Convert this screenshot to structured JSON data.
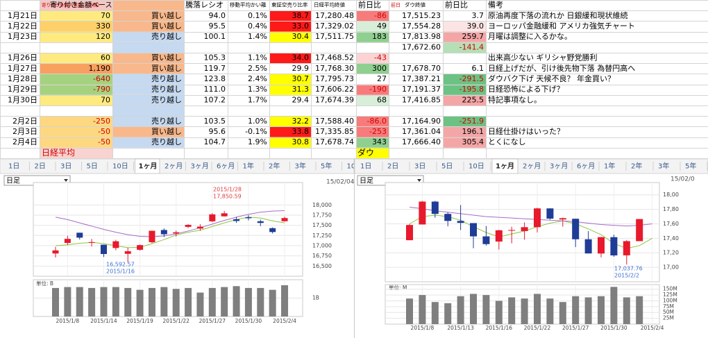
{
  "table": {
    "headers": [
      null,
      "寄り付き外国人売買い(万株)",
      "寄り付き金額ベース",
      "騰落レシオ",
      "移動平均かい離",
      "東証空売り比率",
      "日経平均終値",
      "前日比",
      "前日",
      "ダウ終値",
      "前日比",
      "備考"
    ],
    "rows": [
      [
        "1月21日",
        "70",
        "買い越し",
        "94.0",
        "0.1%",
        "38.7",
        "17,280.48",
        "-86",
        "17,515.23",
        "3.7",
        "原油再度下落の流れか 日銀緩和現状維続"
      ],
      [
        "1月22日",
        "330",
        "買い越し",
        "95.5",
        "0.4%",
        "33.0",
        "17,329.02",
        "49",
        "17,554.28",
        "39.0",
        "ヨーロッパ金融緩和 アメリカ強気チャート"
      ],
      [
        "1月23日",
        "120",
        "売り越し",
        "100.1",
        "1.4%",
        "30.4",
        "17,511.75",
        "183",
        "17,813.98",
        "259.7",
        "月曜は調整に入るかな。"
      ],
      [
        null,
        null,
        null,
        null,
        null,
        null,
        null,
        null,
        "17,672.60",
        "-141.4",
        null
      ],
      [
        "1月26日",
        "60",
        "買い越し",
        "105.3",
        "1.1%",
        "34.0",
        "17,468.52",
        "-43",
        null,
        null,
        "出来高少ない ギリシャ野党勝利"
      ],
      [
        "1月27日",
        "1,190",
        "買い越し",
        "119.7",
        "2.5%",
        "29.9",
        "17,768.30",
        "300",
        "17,678.70",
        "6.1",
        "日経上げだが、引け後先物下落 為替円高へ"
      ],
      [
        "1月28日",
        "-640",
        "売り越し",
        "123.8",
        "2.4%",
        "30.7",
        "17,795.73",
        "27",
        "17,387.21",
        "-291.5",
        "ダウバク下げ 天候不良？ 年金買い？"
      ],
      [
        "1月29日",
        "-790",
        "売り越し",
        "111.0",
        "1.3%",
        "31.3",
        "17,606.22",
        "-190",
        "17,191.37",
        "-195.8",
        "日経恐怖による下げ？"
      ],
      [
        "1月30日",
        "70",
        "売り越し",
        "107.2",
        "1.7%",
        "29.4",
        "17,674.39",
        "68",
        "17,416.85",
        "225.5",
        "特記事項なし。"
      ],
      null,
      [
        "2月2日",
        "-250",
        "売り越し",
        "103.5",
        "1.0%",
        "32.2",
        "17,588.40",
        "-86.0",
        "17,164.90",
        "-251.9",
        null
      ],
      [
        "2月3日",
        "-50",
        "買い越し",
        "95.6",
        "-0.1%",
        "33.8",
        "17,335.85",
        "-253",
        "17,361.04",
        "196.1",
        "日経仕掛けはいった？"
      ],
      [
        "2月4日",
        "-50",
        "売り越し",
        "104.7",
        "1.9%",
        "30.8",
        "17,678.74",
        "343",
        "17,666.40",
        "305.4",
        "とくになし"
      ]
    ],
    "footer": [
      "日経平均",
      "ダウ"
    ]
  },
  "chart_data": [
    {
      "type": "candlestick",
      "tabs": [
        "1日",
        "2日",
        "3日",
        "5日",
        "10日",
        "1ヶ月",
        "2ヶ月",
        "3ヶ月",
        "6ヶ月",
        "1年",
        "2年",
        "3年",
        "5年",
        "10"
      ],
      "selected_tab": 5,
      "period": "日足",
      "date": "15/02/04",
      "categories": [
        null,
        "2015/1/8",
        null,
        null,
        "2015/1/14",
        null,
        null,
        "2015/1/19",
        null,
        null,
        "2015/1/22",
        null,
        null,
        "2015/1/27",
        null,
        null,
        "2015/1/30",
        null,
        null,
        "2015/2/4"
      ],
      "open": [
        16808,
        17067,
        17318,
        17068,
        17024,
        16943,
        16800,
        16899,
        17085,
        17385,
        17300,
        17462,
        17420,
        17598,
        17720,
        17650,
        17700,
        17600,
        17430,
        17600
      ],
      "high": [
        16970,
        17243,
        17319,
        17165,
        17024,
        17143,
        16953,
        17030,
        17368,
        17425,
        17368,
        17530,
        17525,
        17800,
        17850.59,
        17708,
        17750,
        17640,
        17450,
        17711
      ],
      "low": [
        16709,
        17016,
        17151,
        16981,
        16722,
        16889,
        16592.57,
        16876,
        17063,
        17211,
        17225,
        17430,
        17365,
        17580,
        17715,
        17560,
        17620,
        17480,
        17300,
        17590
      ],
      "close": [
        16885,
        17167,
        17197,
        17087,
        16795,
        17108,
        16864,
        17014,
        17366,
        17280,
        17329,
        17511,
        17468,
        17768,
        17795,
        17606,
        17674,
        17558,
        17335,
        17678
      ],
      "up_color": "#e8192c",
      "down_color": "#1f3c96",
      "ma": [
        {
          "color": "#8cc63f",
          "values": [
            17000,
            17020,
            17060,
            17080,
            17050,
            17000,
            16950,
            16960,
            17050,
            17150,
            17260,
            17330,
            17380,
            17470,
            17560,
            17640,
            17700,
            17680,
            17610,
            17560
          ]
        },
        {
          "color": "#a66bc8",
          "values": [
            17700,
            17640,
            17560,
            17480,
            17400,
            17330,
            17270,
            17230,
            17220,
            17240,
            17290,
            17360,
            17440,
            17530,
            17620,
            17700,
            17770,
            17820,
            17850,
            17860
          ]
        }
      ],
      "ylim": [
        16250,
        18550
      ],
      "yticks": [
        {
          "value": 18000,
          "label": "18,000"
        },
        {
          "value": 17750,
          "label": "17,750"
        },
        {
          "value": 17500,
          "label": "17,500"
        },
        {
          "value": 17250,
          "label": "17,250"
        },
        {
          "value": 17000,
          "label": "17,000"
        },
        {
          "value": 16750,
          "label": "16,750"
        },
        {
          "value": 16500,
          "label": "16,500"
        }
      ],
      "grid": true,
      "annotations": [
        {
          "lines": [
            "2015/1/28",
            "17,850.59"
          ],
          "color": "#e03c3c"
        },
        {
          "lines": [
            "16,592.57",
            "2015/1/16"
          ],
          "color": "#3d6fd1"
        }
      ],
      "volume": {
        "unit": "単位: B",
        "color": "#7f7f7f",
        "values": [
          1.55,
          1.6,
          1.6,
          1.55,
          1.6,
          1.6,
          1.55,
          1.45,
          1.55,
          1.6,
          1.5,
          1.55,
          1.3,
          1.55,
          1.6,
          1.65,
          1.55,
          1.55,
          1.45,
          1.7
        ],
        "ylim": [
          0,
          2
        ],
        "yticks": [
          {
            "value": 1,
            "label": "1B"
          }
        ]
      }
    },
    {
      "type": "candlestick",
      "tabs": [
        "1日",
        "2日",
        "3日",
        "5日",
        "10日",
        "1ヶ月",
        "2ヶ月",
        "3ヶ月",
        "6ヶ月",
        "1年",
        "2年",
        "3年",
        "5年"
      ],
      "selected_tab": 5,
      "period": "日足",
      "date": "15/02/0",
      "categories": [
        null,
        "2015/1/8",
        null,
        null,
        "2015/1/13",
        null,
        null,
        "2015/1/16",
        null,
        null,
        "2015/1/22",
        null,
        null,
        "2015/1/27",
        null,
        null,
        "2015/1/30",
        null,
        null,
        "2015/2/4"
      ],
      "open": [
        17374,
        17591,
        17907,
        17737,
        17640,
        17610,
        17427,
        17355,
        17511,
        17500,
        17554,
        17813,
        17660,
        17670,
        17387,
        17190,
        17416,
        17165,
        17361,
        null
      ],
      "high": [
        17597,
        17916,
        17917,
        17760,
        17860,
        17610,
        17570,
        17517,
        17560,
        17620,
        17821,
        17813,
        17686,
        17670,
        17500,
        17420,
        17450,
        17375,
        17667,
        null
      ],
      "low": [
        17374,
        17591,
        17684,
        17565,
        17515,
        17264,
        17300,
        17245,
        17330,
        17380,
        17482,
        17657,
        17560,
        17280,
        17191,
        17137,
        17145,
        17037.76,
        17361,
        null
      ],
      "close": [
        17584,
        17907,
        17737,
        17640,
        17613,
        17427,
        17320,
        17511,
        17515,
        17554,
        17813,
        17672,
        17678,
        17387,
        17191,
        17416,
        17164,
        17361,
        17666,
        null
      ],
      "up_color": "#e8192c",
      "down_color": "#1f3c96",
      "ma": [
        {
          "color": "#8cc63f",
          "values": [
            17600,
            17700,
            17720,
            17700,
            17650,
            17560,
            17480,
            17420,
            17460,
            17500,
            17560,
            17610,
            17640,
            17600,
            17530,
            17450,
            17330,
            17260,
            17300,
            17400
          ]
        },
        {
          "color": "#a66bc8",
          "values": [
            17830,
            17810,
            17780,
            17760,
            17740,
            17720,
            17700,
            17690,
            17680,
            17670,
            17660,
            17650,
            17640,
            17630,
            17610,
            17590,
            17580,
            17570,
            17580,
            17600
          ]
        }
      ],
      "ylim": [
        16800,
        18170
      ],
      "yticks": [
        {
          "value": 18000,
          "label": "18,00"
        },
        {
          "value": 17800,
          "label": "17,80"
        },
        {
          "value": 17600,
          "label": "17,60"
        },
        {
          "value": 17400,
          "label": "17,40"
        },
        {
          "value": 17200,
          "label": "17,20"
        },
        {
          "value": 17000,
          "label": "17,00"
        }
      ],
      "grid": true,
      "annotations": [
        {
          "lines": [
            "17,037.76",
            "2015/2/2"
          ],
          "color": "#3d6fd1"
        }
      ],
      "volume": {
        "unit": "単位: M",
        "color": "#7f7f7f",
        "values": [
          110,
          125,
          95,
          90,
          120,
          130,
          125,
          100,
          115,
          110,
          130,
          110,
          95,
          120,
          115,
          120,
          160,
          115,
          120,
          null
        ],
        "ylim": [
          0,
          170
        ],
        "yticks": [
          {
            "value": 150,
            "label": "150M"
          },
          {
            "value": 125,
            "label": "125M"
          },
          {
            "value": 100,
            "label": "100M"
          },
          {
            "value": 75,
            "label": "75M"
          },
          {
            "value": 50,
            "label": "50M"
          },
          {
            "value": 25,
            "label": "25M"
          }
        ]
      }
    }
  ]
}
